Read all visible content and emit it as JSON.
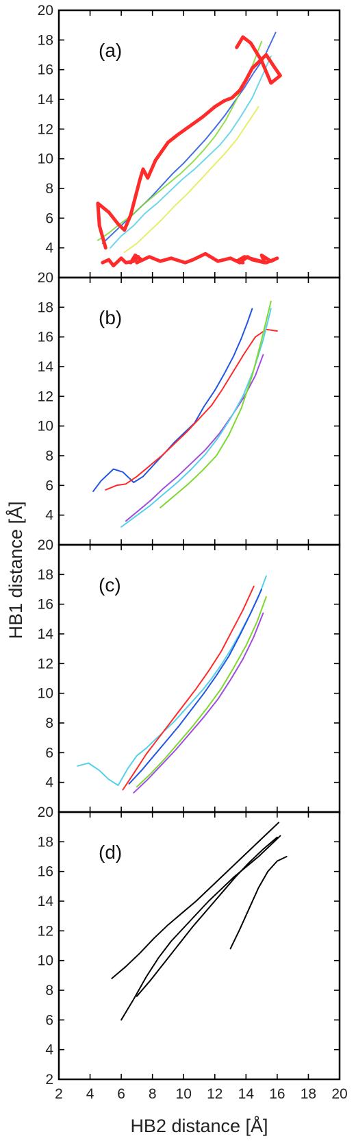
{
  "chart_data": {
    "type": "line",
    "xlabel": "HB2 distance [Å]",
    "ylabel": "HB1 distance [Å]",
    "xlim": [
      2,
      20
    ],
    "ylim": [
      2,
      20
    ],
    "x_ticks": [
      "2",
      "4",
      "6",
      "8",
      "10",
      "12",
      "14",
      "16",
      "18",
      "20"
    ],
    "y_ticks": [
      "4",
      "6",
      "8",
      "10",
      "12",
      "14",
      "16",
      "18",
      "20"
    ],
    "y_ticks_bottom": [
      "2",
      "4",
      "6",
      "8",
      "10",
      "12",
      "14",
      "16",
      "18",
      "20"
    ],
    "grid": false,
    "legend": false,
    "panels": [
      {
        "label": "(a)",
        "series": [
          {
            "color": "#ff2a2a",
            "width": 5,
            "x": [
              4.8,
              5.2,
              5.5,
              6.0,
              6.3,
              6.8,
              7.1,
              6.6,
              6.9,
              7.3,
              7.0,
              7.8,
              8.5,
              9.2,
              10.1,
              10.6,
              11.4,
              12.2,
              13.0,
              13.6,
              14.1,
              14.4,
              15.2,
              15.0,
              15.6,
              16.0,
              15.3,
              14.6,
              13.9,
              13.4,
              13.8
            ],
            "y": [
              3.0,
              3.2,
              2.8,
              3.3,
              3.0,
              3.1,
              3.4,
              3.0,
              3.5,
              3.2,
              3.0,
              3.4,
              3.1,
              3.3,
              3.0,
              3.2,
              3.6,
              3.1,
              3.3,
              3.0,
              3.4,
              3.2,
              3.0,
              3.5,
              3.1,
              3.3,
              3.0,
              3.2,
              3.4,
              3.1,
              3.0
            ]
          },
          {
            "color": "#ff2a2a",
            "width": 5,
            "x": [
              5.0,
              4.6,
              4.5,
              5.2,
              5.8,
              6.2,
              6.6,
              6.9,
              7.2,
              7.4,
              7.7,
              8.2,
              9.0,
              9.6,
              10.4,
              11.2,
              12.0,
              12.6,
              13.1,
              13.6,
              14.0,
              14.4,
              14.9,
              15.3,
              15.8,
              16.2,
              15.6,
              15.0,
              14.3,
              13.8,
              13.4
            ],
            "y": [
              4.0,
              5.5,
              7.0,
              6.4,
              5.6,
              5.2,
              6.2,
              7.4,
              8.6,
              9.3,
              8.7,
              9.9,
              11.1,
              11.6,
              12.2,
              12.8,
              13.5,
              13.9,
              14.1,
              14.6,
              15.3,
              16.1,
              16.6,
              17.0,
              16.2,
              15.6,
              15.1,
              16.6,
              17.8,
              18.2,
              17.5
            ]
          }
        ],
        "faint_series": [
          {
            "color": "#2255e0",
            "x": [
              4.8,
              5.6,
              6.3,
              7.1,
              7.9,
              8.6,
              9.3,
              10.0,
              10.7,
              11.4,
              12.1,
              12.7,
              13.3,
              13.9,
              14.5,
              15.1,
              15.5,
              15.9
            ],
            "y": [
              4.3,
              5.1,
              5.8,
              6.6,
              7.4,
              8.2,
              9.0,
              9.7,
              10.5,
              11.3,
              12.2,
              13.0,
              13.9,
              14.8,
              15.8,
              16.7,
              17.6,
              18.5
            ]
          },
          {
            "color": "#55d0e8",
            "x": [
              5.3,
              6.0,
              6.8,
              7.5,
              8.3,
              9.1,
              9.9,
              10.7,
              11.5,
              12.3,
              13.0,
              13.7,
              14.4,
              15.0,
              15.6
            ],
            "y": [
              4.0,
              4.8,
              5.5,
              6.3,
              7.0,
              7.8,
              8.6,
              9.3,
              10.1,
              10.9,
              11.8,
              12.9,
              14.1,
              15.5,
              16.9
            ]
          },
          {
            "color": "#7ed830",
            "x": [
              4.5,
              5.2,
              5.9,
              6.7,
              7.4,
              8.2,
              9.0,
              9.8,
              10.6,
              11.3,
              12.0,
              12.7,
              13.3,
              13.9,
              14.5,
              15.0
            ],
            "y": [
              4.5,
              5.0,
              5.6,
              6.2,
              6.9,
              7.6,
              8.3,
              9.0,
              9.8,
              10.6,
              11.5,
              12.6,
              13.8,
              15.1,
              16.5,
              17.9
            ]
          },
          {
            "color": "#e4ea50",
            "x": [
              6.2,
              7.0,
              7.8,
              8.6,
              9.4,
              10.2,
              11.0,
              11.8,
              12.6,
              13.4,
              14.1,
              14.8
            ],
            "y": [
              3.7,
              4.3,
              5.1,
              5.9,
              6.8,
              7.6,
              8.5,
              9.4,
              10.3,
              11.3,
              12.4,
              13.5
            ]
          }
        ]
      },
      {
        "label": "(b)",
        "series": [
          {
            "color": "#2255e0",
            "width": 2,
            "x": [
              4.2,
              4.7,
              5.5,
              6.1,
              6.8,
              7.4,
              8.1,
              8.8,
              9.4,
              10.0,
              10.7,
              11.3,
              12.0,
              12.6,
              13.2,
              13.7,
              14.1,
              14.4
            ],
            "y": [
              5.6,
              6.3,
              7.1,
              6.9,
              6.2,
              6.6,
              7.4,
              8.2,
              8.9,
              9.5,
              10.2,
              11.3,
              12.4,
              13.5,
              14.7,
              15.9,
              17.0,
              17.9
            ]
          },
          {
            "color": "#ff2a2a",
            "width": 2,
            "x": [
              5.0,
              5.7,
              6.3,
              7.0,
              7.8,
              8.6,
              9.4,
              10.2,
              11.0,
              11.8,
              12.5,
              13.2,
              13.9,
              14.6,
              15.3,
              16.0
            ],
            "y": [
              5.7,
              6.0,
              6.1,
              6.6,
              7.3,
              8.0,
              8.8,
              9.6,
              10.5,
              11.4,
              12.5,
              13.7,
              14.9,
              16.0,
              16.5,
              16.4
            ]
          },
          {
            "color": "#a04de0",
            "width": 2,
            "x": [
              6.3,
              7.1,
              7.9,
              8.7,
              9.6,
              10.5,
              11.4,
              12.3,
              13.1,
              13.9,
              14.6,
              15.1
            ],
            "y": [
              3.6,
              4.3,
              5.0,
              5.8,
              6.6,
              7.5,
              8.4,
              9.5,
              10.7,
              12.0,
              13.4,
              14.8
            ]
          },
          {
            "color": "#55d0e8",
            "width": 2,
            "x": [
              6.0,
              6.9,
              7.8,
              8.7,
              9.6,
              10.5,
              11.4,
              12.2,
              13.0,
              13.8,
              14.5,
              15.1,
              15.6
            ],
            "y": [
              3.2,
              3.9,
              4.6,
              5.4,
              6.2,
              7.1,
              8.1,
              9.2,
              10.5,
              12.0,
              13.8,
              15.8,
              17.9
            ]
          },
          {
            "color": "#7ed830",
            "width": 2,
            "x": [
              8.5,
              9.4,
              10.3,
              11.2,
              12.1,
              12.9,
              13.7,
              14.4,
              15.0,
              15.6
            ],
            "y": [
              4.5,
              5.3,
              6.1,
              7.0,
              8.0,
              9.4,
              11.2,
              13.4,
              15.8,
              18.4
            ]
          }
        ]
      },
      {
        "label": "(c)",
        "series": [
          {
            "color": "#55d0e8",
            "width": 2,
            "x": [
              3.2,
              3.9,
              4.6,
              5.2,
              5.8,
              6.4,
              7.0,
              7.6,
              8.2,
              8.8,
              9.4,
              10.0,
              10.6,
              11.2,
              11.8,
              12.4,
              13.0,
              13.6,
              14.2,
              14.8,
              15.3
            ],
            "y": [
              5.1,
              5.3,
              4.8,
              4.2,
              3.8,
              4.9,
              5.8,
              6.3,
              6.9,
              7.5,
              8.1,
              8.8,
              9.5,
              10.2,
              11.0,
              11.9,
              12.9,
              14.0,
              15.2,
              16.5,
              17.9
            ]
          },
          {
            "color": "#ff2a2a",
            "width": 2,
            "x": [
              6.1,
              6.8,
              7.6,
              8.4,
              9.2,
              10.0,
              10.8,
              11.6,
              12.4,
              13.1,
              13.8,
              14.5
            ],
            "y": [
              3.5,
              4.6,
              5.9,
              7.0,
              8.1,
              9.2,
              10.3,
              11.5,
              12.8,
              14.2,
              15.6,
              17.2
            ]
          },
          {
            "color": "#2255e0",
            "width": 2,
            "x": [
              6.5,
              7.3,
              8.1,
              8.9,
              9.7,
              10.5,
              11.3,
              12.1,
              12.9,
              13.6,
              14.3,
              15.0
            ],
            "y": [
              3.9,
              4.8,
              5.8,
              6.8,
              7.8,
              8.9,
              10.0,
              11.2,
              12.5,
              13.9,
              15.4,
              17.0
            ]
          },
          {
            "color": "#a04de0",
            "width": 2,
            "x": [
              6.8,
              7.7,
              8.6,
              9.5,
              10.4,
              11.3,
              12.2,
              13.0,
              13.8,
              14.5,
              15.1
            ],
            "y": [
              3.3,
              4.2,
              5.2,
              6.2,
              7.3,
              8.4,
              9.6,
              10.9,
              12.3,
              13.8,
              15.4
            ]
          },
          {
            "color": "#7ed830",
            "width": 2,
            "x": [
              7.0,
              7.9,
              8.8,
              9.7,
              10.6,
              11.5,
              12.4,
              13.2,
              14.0,
              14.7,
              15.3
            ],
            "y": [
              3.7,
              4.6,
              5.6,
              6.7,
              7.8,
              9.0,
              10.3,
              11.7,
              13.2,
              14.8,
              16.5
            ]
          }
        ]
      },
      {
        "label": "(d)",
        "series": [
          {
            "color": "#000000",
            "width": 2,
            "x": [
              6.0,
              6.8,
              7.6,
              8.4,
              9.2,
              10.0,
              10.8,
              11.6,
              12.4,
              13.2,
              14.0,
              14.8,
              15.6,
              16.2
            ],
            "y": [
              6.0,
              7.4,
              8.9,
              10.2,
              11.3,
              12.2,
              13.1,
              14.0,
              14.8,
              15.6,
              16.3,
              17.0,
              17.8,
              18.4
            ]
          },
          {
            "color": "#000000",
            "width": 2,
            "x": [
              5.4,
              6.3,
              7.2,
              8.1,
              9.0,
              9.9,
              10.8,
              11.7,
              12.6,
              13.5,
              14.4,
              15.3,
              16.1
            ],
            "y": [
              8.8,
              9.6,
              10.5,
              11.5,
              12.4,
              13.2,
              14.0,
              14.9,
              15.8,
              16.7,
              17.6,
              18.5,
              19.3
            ]
          },
          {
            "color": "#000000",
            "width": 2,
            "x": [
              7.0,
              7.9,
              8.8,
              9.7,
              10.6,
              11.5,
              12.4,
              13.3,
              14.2,
              15.1,
              16.0
            ],
            "y": [
              7.6,
              8.7,
              9.9,
              11.1,
              12.3,
              13.4,
              14.5,
              15.6,
              16.6,
              17.5,
              18.3
            ]
          },
          {
            "color": "#000000",
            "width": 2,
            "x": [
              13.0,
              13.6,
              14.2,
              14.8,
              15.4,
              16.0,
              16.6
            ],
            "y": [
              10.8,
              12.1,
              13.5,
              14.9,
              16.0,
              16.7,
              17.0
            ]
          }
        ]
      }
    ]
  }
}
